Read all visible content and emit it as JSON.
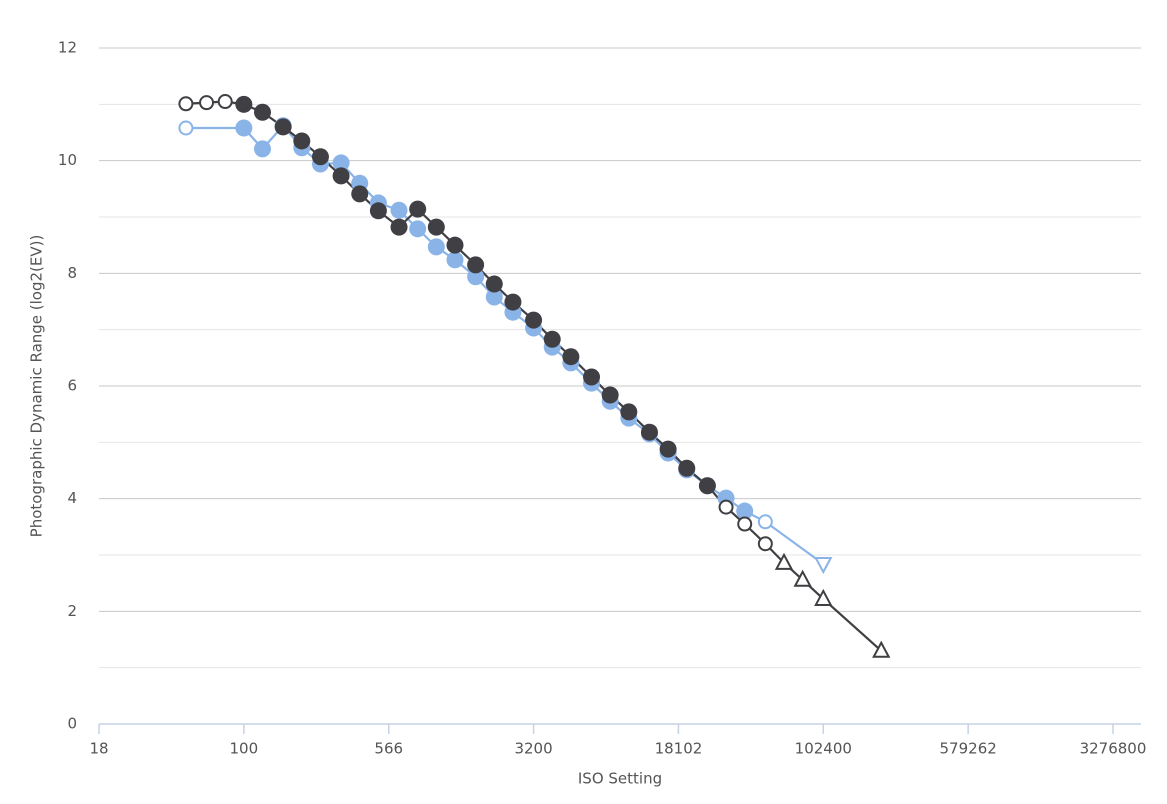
{
  "chart_data": {
    "type": "line",
    "x_label": "ISO Setting",
    "y_label": "Photographic Dynamic Range (log2(EV))",
    "xscale": "log",
    "xlim": [
      17.68,
      4580000
    ],
    "xticks": [
      {
        "value": 17.68,
        "label": "18"
      },
      100,
      566,
      3200,
      18102,
      102400,
      579262,
      3276800
    ],
    "ylim": [
      0,
      12
    ],
    "yticks": [
      0,
      2,
      4,
      6,
      8,
      10,
      12
    ],
    "minor_yticks": [
      1,
      3,
      5,
      7,
      9,
      11
    ],
    "grid": true,
    "series": [
      {
        "color": "#8ab4e8",
        "x": [
          50,
          100,
          125,
          160,
          200,
          250,
          320,
          400,
          500,
          640,
          800,
          1000,
          1250,
          1600,
          2000,
          2500,
          3200,
          4000,
          5000,
          6400,
          8000,
          10000,
          12800,
          16000,
          20000,
          25600,
          32000,
          40000,
          51200,
          102400
        ],
        "values": [
          10.58,
          10.58,
          10.21,
          10.62,
          10.23,
          9.94,
          9.96,
          9.6,
          9.25,
          9.12,
          8.79,
          8.47,
          8.24,
          7.94,
          7.58,
          7.31,
          7.03,
          6.69,
          6.41,
          6.05,
          5.73,
          5.43,
          5.15,
          4.81,
          4.51,
          4.23,
          4.01,
          3.78,
          3.59,
          2.84
        ],
        "markers": [
          "open-circle",
          "circle",
          "circle",
          "circle",
          "circle",
          "circle",
          "circle",
          "circle",
          "circle",
          "circle",
          "circle",
          "circle",
          "circle",
          "circle",
          "circle",
          "circle",
          "circle",
          "circle",
          "circle",
          "circle",
          "circle",
          "circle",
          "circle",
          "circle",
          "circle",
          "circle",
          "circle",
          "circle",
          "open-circle",
          "triangle-down"
        ]
      },
      {
        "color": "#3f3f44",
        "x": [
          50,
          64,
          80,
          100,
          125,
          160,
          200,
          250,
          320,
          400,
          500,
          640,
          800,
          1000,
          1250,
          1600,
          2000,
          2500,
          3200,
          4000,
          5000,
          6400,
          8000,
          10000,
          12800,
          16000,
          20000,
          25600,
          32000,
          40000,
          51200,
          64000,
          80000,
          102400,
          204800
        ],
        "values": [
          11.01,
          11.03,
          11.05,
          11.0,
          10.86,
          10.6,
          10.35,
          10.07,
          9.73,
          9.41,
          9.11,
          8.82,
          9.14,
          8.82,
          8.5,
          8.15,
          7.81,
          7.49,
          7.17,
          6.83,
          6.52,
          6.16,
          5.84,
          5.54,
          5.18,
          4.88,
          4.54,
          4.23,
          3.85,
          3.55,
          3.2,
          2.86,
          2.56,
          2.22,
          1.3
        ],
        "markers": [
          "open-circle",
          "open-circle",
          "open-circle",
          "circle",
          "circle",
          "circle",
          "circle",
          "circle",
          "circle",
          "circle",
          "circle",
          "circle",
          "circle",
          "circle",
          "circle",
          "circle",
          "circle",
          "circle",
          "circle",
          "circle",
          "circle",
          "circle",
          "circle",
          "circle",
          "circle",
          "circle",
          "circle",
          "circle",
          "open-circle",
          "open-circle",
          "open-circle",
          "triangle",
          "triangle",
          "triangle",
          "triangle"
        ]
      }
    ]
  }
}
